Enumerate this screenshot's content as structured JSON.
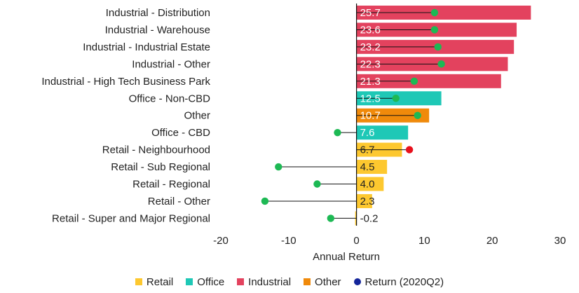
{
  "chart_data": {
    "type": "bar",
    "orientation": "horizontal",
    "xlabel": "Annual Return",
    "xlim": [
      -20,
      30
    ],
    "xticks": [
      -20,
      -10,
      0,
      10,
      20,
      30
    ],
    "categories": [
      "Industrial - Distribution",
      "Industrial - Warehouse",
      "Industrial - Industrial Estate",
      "Industrial - Other",
      "Industrial - High Tech Business Park",
      "Office - Non-CBD",
      "Other",
      "Office - CBD",
      "Retail - Neighbourhood",
      "Retail - Sub Regional",
      "Retail - Regional",
      "Retail - Other",
      "Retail - Super and Major Regional"
    ],
    "values": [
      25.7,
      23.6,
      23.2,
      22.3,
      21.3,
      12.5,
      10.7,
      7.6,
      6.7,
      4.5,
      4.0,
      2.3,
      -0.2
    ],
    "value_labels": [
      "25.7",
      "23.6",
      "23.2",
      "22.3",
      "21.3",
      "12.5",
      "10.7",
      "7.6",
      "6.7",
      "4.5",
      "4.0",
      "2.3",
      "-0.2"
    ],
    "groups": [
      "Industrial",
      "Industrial",
      "Industrial",
      "Industrial",
      "Industrial",
      "Office",
      "Other",
      "Office",
      "Retail",
      "Retail",
      "Retail",
      "Retail",
      "Retail"
    ],
    "quarter_returns": [
      11.5,
      11.5,
      12.0,
      12.5,
      8.5,
      5.8,
      9.0,
      -2.8,
      7.8,
      -11.5,
      -5.8,
      -13.5,
      -3.8
    ],
    "quarter_return_colors": [
      "#1db954",
      "#1db954",
      "#1db954",
      "#1db954",
      "#1db954",
      "#1db954",
      "#1db954",
      "#1db954",
      "#e8101c",
      "#1db954",
      "#1db954",
      "#1db954",
      "#1db954"
    ],
    "group_colors": {
      "Retail": "#fdc82f",
      "Office": "#1ec8b6",
      "Industrial": "#e3425e",
      "Other": "#f08a0b"
    },
    "legend": [
      {
        "name": "Retail",
        "color": "#fdc82f",
        "marker": "square"
      },
      {
        "name": "Office",
        "color": "#1ec8b6",
        "marker": "square"
      },
      {
        "name": "Industrial",
        "color": "#e3425e",
        "marker": "square"
      },
      {
        "name": "Other",
        "color": "#f08a0b",
        "marker": "square"
      },
      {
        "name": "Return (2020Q2)",
        "color": "#14259a",
        "marker": "dot"
      }
    ]
  }
}
